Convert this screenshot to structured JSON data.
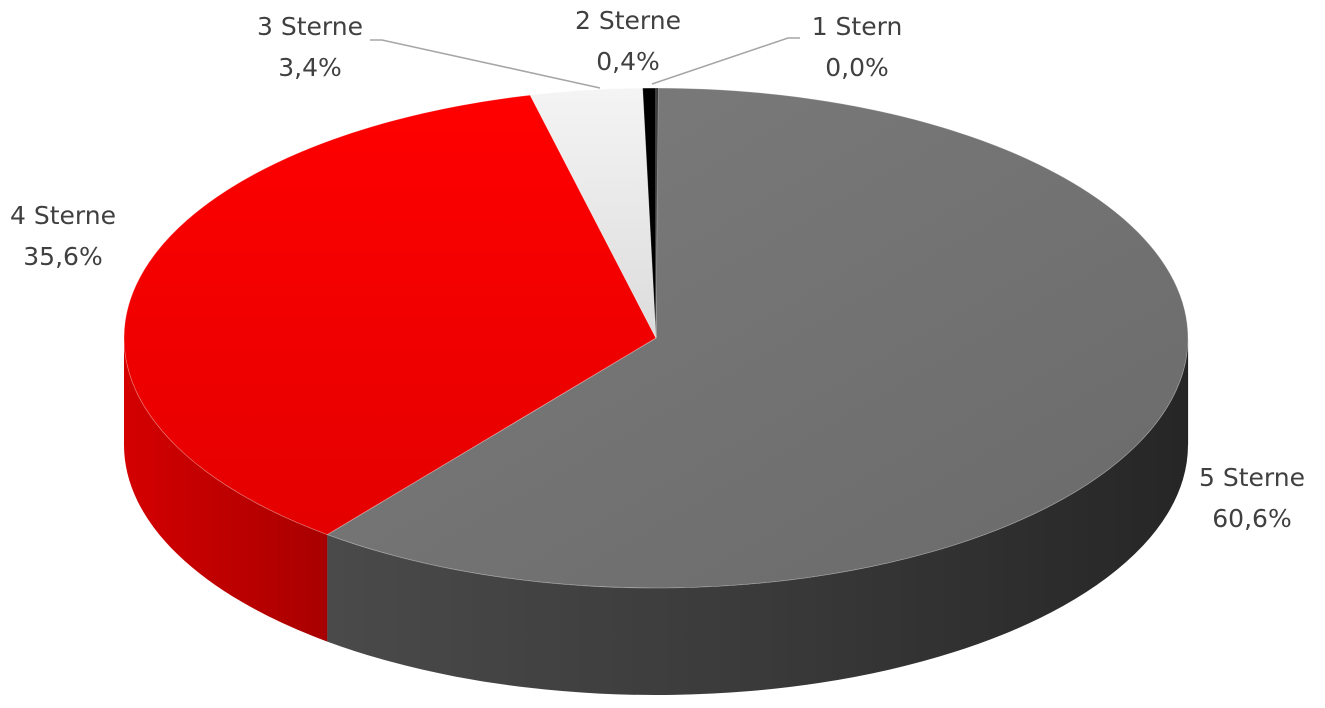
{
  "chart_data": {
    "type": "pie",
    "style": "3d",
    "slices": [
      {
        "label": "5 Sterne",
        "value_text": "60,6%",
        "value": 60.6,
        "color": "#6e6e6e"
      },
      {
        "label": "4 Sterne",
        "value_text": "35,6%",
        "value": 35.6,
        "color": "#ff0000"
      },
      {
        "label": "3 Sterne",
        "value_text": "3,4%",
        "value": 3.4,
        "color": "#eeeeee"
      },
      {
        "label": "2 Sterne",
        "value_text": "0,4%",
        "value": 0.4,
        "color": "#000000"
      },
      {
        "label": "1 Stern",
        "value_text": "0,0%",
        "value": 0.0,
        "color": "#202020"
      }
    ]
  }
}
